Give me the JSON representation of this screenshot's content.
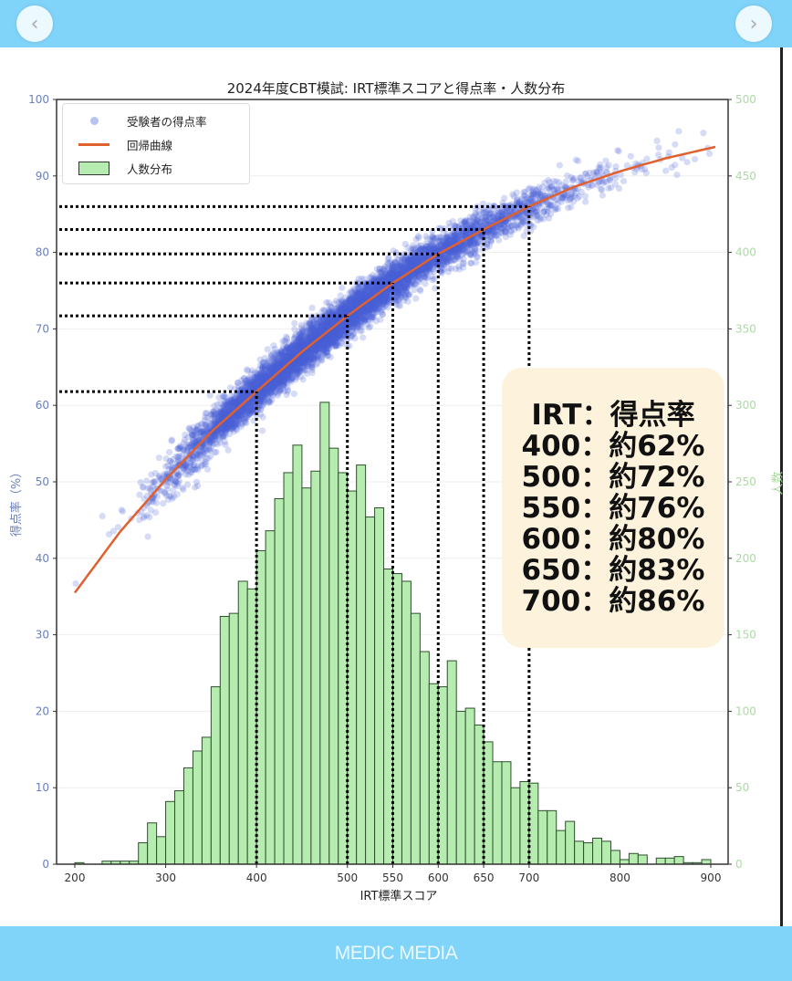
{
  "footer": {
    "logo": "MEDIC MEDIA"
  },
  "nav": {
    "prev_icon": "‹",
    "next_icon": "›"
  },
  "chart_data": {
    "type": "bar+scatter+line",
    "title": "2024年度CBT模試: IRT標準スコアと得点率・人数分布",
    "xlabel": "IRT標準スコア",
    "ylabel_left": "得点率（%）",
    "ylabel_right": "人数",
    "xlim": [
      185,
      925
    ],
    "ylim_left": [
      0,
      100
    ],
    "ylim_right": [
      0,
      500
    ],
    "xticks": [
      200,
      300,
      400,
      500,
      550,
      600,
      650,
      700,
      800,
      900
    ],
    "yticks_left": [
      0,
      10,
      20,
      30,
      40,
      50,
      60,
      70,
      80,
      90,
      100
    ],
    "yticks_right": [
      0,
      50,
      100,
      150,
      200,
      250,
      300,
      350,
      400,
      450,
      500
    ],
    "legend": {
      "placement": "top-left",
      "entries": [
        "受験者の得点率",
        "回帰曲線",
        "人数分布"
      ]
    },
    "colors": {
      "scatter": "#4a5fd8",
      "regression": "#e0602e",
      "hist_fill": "#b6ecb0",
      "hist_edge": "#2f4f2f",
      "left_axis": "#6a7fc0",
      "right_axis": "#a9dca0"
    },
    "histogram": {
      "bin_start": 200,
      "bin_width": 10,
      "counts": [
        1,
        0,
        0,
        2,
        2,
        2,
        2,
        14,
        27,
        18,
        41,
        48,
        63,
        74,
        83,
        116,
        162,
        164,
        185,
        180,
        205,
        218,
        239,
        256,
        274,
        246,
        257,
        302,
        272,
        256,
        244,
        261,
        227,
        233,
        193,
        190,
        185,
        164,
        139,
        118,
        116,
        133,
        100,
        102,
        91,
        80,
        67,
        67,
        50,
        54,
        53,
        35,
        35,
        22,
        28,
        15,
        14,
        17,
        15,
        9,
        3,
        7,
        6,
        0,
        4,
        4,
        5,
        1,
        1,
        3
      ]
    },
    "regression_curve": {
      "x": [
        200,
        250,
        300,
        350,
        400,
        450,
        500,
        550,
        600,
        650,
        700,
        750,
        800,
        850,
        905
      ],
      "y": [
        35.5,
        43.5,
        50.3,
        56.5,
        61.8,
        67.0,
        71.7,
        76.0,
        79.8,
        83.0,
        86.0,
        88.6,
        90.6,
        92.3,
        93.8
      ]
    },
    "scatter": {
      "description_noise_sd": 1.3
    },
    "reference_points": [
      [
        400,
        62
      ],
      [
        500,
        72
      ],
      [
        550,
        76
      ],
      [
        600,
        80
      ],
      [
        650,
        83
      ],
      [
        700,
        86
      ]
    ],
    "annotation": {
      "header": "IRT：得点率",
      "lines": [
        "400：約62%",
        "500：約72%",
        "550：約76%",
        "600：約80%",
        "650：約83%",
        "700：約86%"
      ]
    }
  }
}
